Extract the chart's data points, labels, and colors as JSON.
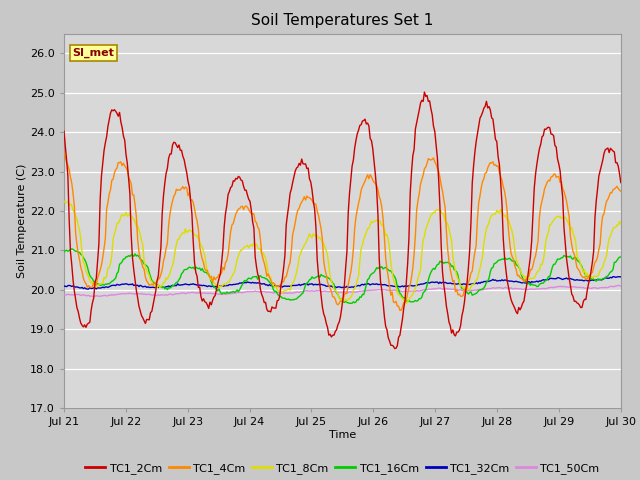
{
  "title": "Soil Temperatures Set 1",
  "xlabel": "Time",
  "ylabel": "Soil Temperature (C)",
  "ylim": [
    17.0,
    26.5
  ],
  "background_color": "#dedede",
  "plot_bg": "#d8d8d8",
  "annotation_text": "SI_met",
  "annotation_bg": "#ffff99",
  "annotation_border": "#aa8800",
  "annotation_text_color": "#880000",
  "series_colors": {
    "TC1_2Cm": "#cc0000",
    "TC1_4Cm": "#ff8800",
    "TC1_8Cm": "#dddd00",
    "TC1_16Cm": "#00cc00",
    "TC1_32Cm": "#0000bb",
    "TC1_50Cm": "#dd88dd"
  },
  "xtick_labels": [
    "Jul 21",
    "Jul 22",
    "Jul 23",
    "Jul 24",
    "Jul 25",
    "Jul 26",
    "Jul 27",
    "Jul 28",
    "Jul 29",
    "Jul 30"
  ],
  "ytick_values": [
    17.0,
    18.0,
    19.0,
    20.0,
    21.0,
    22.0,
    23.0,
    24.0,
    25.0,
    26.0
  ],
  "legend_labels": [
    "TC1_2Cm",
    "TC1_4Cm",
    "TC1_8Cm",
    "TC1_16Cm",
    "TC1_32Cm",
    "TC1_50Cm"
  ],
  "legend_colors": [
    "#cc0000",
    "#ff8800",
    "#dddd00",
    "#00cc00",
    "#0000bb",
    "#dd88dd"
  ],
  "figsize": [
    6.4,
    4.8
  ],
  "dpi": 100
}
